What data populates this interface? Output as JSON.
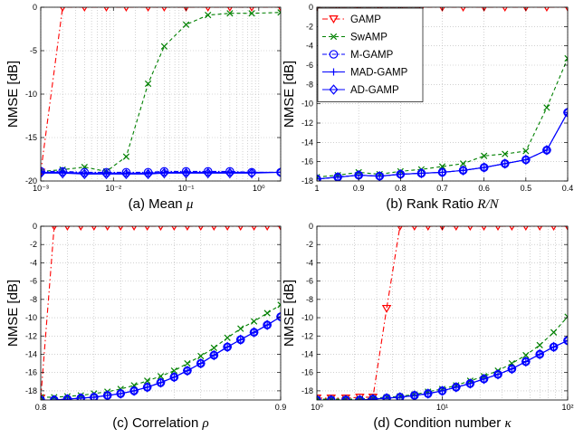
{
  "series_styles": [
    {
      "name": "GAMP",
      "color": "#ff0000",
      "dash": "6,3,1.5,3",
      "marker": "triangle-down"
    },
    {
      "name": "SwAMP",
      "color": "#008000",
      "dash": "4,3",
      "marker": "x"
    },
    {
      "name": "M-GAMP",
      "color": "#0000ff",
      "dash": "5,2,1.5,2",
      "marker": "circle"
    },
    {
      "name": "MAD-GAMP",
      "color": "#0000ff",
      "dash": "",
      "marker": "plus"
    },
    {
      "name": "AD-GAMP",
      "color": "#0000ff",
      "dash": "",
      "marker": "diamond"
    }
  ],
  "chart_data": [
    {
      "type": "line",
      "caption": "(a) Mean",
      "caption_symbol": "μ",
      "ylabel": "NMSE [dB]",
      "xscale": "log",
      "xlim": [
        0.001,
        2
      ],
      "ylim": [
        -20,
        0
      ],
      "xticks": [
        0.001,
        0.01,
        0.1,
        1
      ],
      "xtick_labels": [
        "10⁻³",
        "10⁻²",
        "10⁻¹",
        "10⁰"
      ],
      "yticks": [
        -20,
        -15,
        -10,
        -5,
        0
      ],
      "ytick_labels": [
        "-20",
        "-15",
        "-10",
        "-5",
        "0"
      ],
      "grid": true,
      "x": [
        0.001,
        0.002,
        0.004,
        0.008,
        0.015,
        0.03,
        0.05,
        0.1,
        0.2,
        0.4,
        0.8,
        2
      ],
      "series": [
        {
          "name": "GAMP",
          "values": [
            -19,
            0,
            0,
            0,
            0,
            0,
            0,
            0,
            0,
            0,
            0,
            0
          ]
        },
        {
          "name": "SwAMP",
          "values": [
            -18.9,
            -18.7,
            -18.4,
            -18.9,
            -17.2,
            -8.8,
            -4.5,
            -2.0,
            -0.9,
            -0.7,
            -0.7,
            -0.6
          ]
        },
        {
          "name": "M-GAMP",
          "values": [
            -18.9,
            -18.9,
            -19.0,
            -19.0,
            -19.0,
            -19.0,
            -18.9,
            -18.9,
            -18.9,
            -18.9,
            -19.0,
            -19.0
          ]
        },
        {
          "name": "MAD-GAMP",
          "values": [
            -19.0,
            -19.0,
            -19.1,
            -19.1,
            -19.1,
            -19.1,
            -19.0,
            -19.0,
            -19.0,
            -19.0,
            -19.0,
            -19.0
          ]
        },
        {
          "name": "AD-GAMP",
          "values": [
            -19.1,
            -19.1,
            -19.2,
            -19.2,
            -19.2,
            -19.2,
            -19.1,
            -19.1,
            -19.1,
            -19.1,
            -19.1,
            -19.0
          ]
        }
      ]
    },
    {
      "type": "line",
      "caption": "(b) Rank Ratio",
      "caption_symbol": "R/N",
      "ylabel": "NMSE [dB]",
      "xscale": "linear",
      "xreversed": true,
      "xlim": [
        1,
        0.4
      ],
      "ylim": [
        -18,
        0
      ],
      "xticks": [
        1,
        0.9,
        0.8,
        0.7,
        0.6,
        0.5,
        0.4
      ],
      "xtick_labels": [
        "1",
        "0.9",
        "0.8",
        "0.7",
        "0.6",
        "0.5",
        "0.4"
      ],
      "yticks": [
        -18,
        -16,
        -14,
        -12,
        -10,
        -8,
        -6,
        -4,
        -2,
        0
      ],
      "ytick_labels": [
        "-18",
        "-16",
        "-14",
        "-12",
        "-10",
        "-8",
        "-6",
        "-4",
        "-2",
        "0"
      ],
      "grid": true,
      "legend": "top-left",
      "x": [
        1,
        0.95,
        0.9,
        0.85,
        0.8,
        0.75,
        0.7,
        0.65,
        0.6,
        0.55,
        0.5,
        0.45,
        0.4
      ],
      "series": [
        {
          "name": "GAMP",
          "values": [
            0,
            0,
            0,
            0,
            0,
            0,
            0,
            0,
            0,
            0,
            0,
            0,
            0
          ]
        },
        {
          "name": "SwAMP",
          "values": [
            -17.6,
            -17.4,
            -17.1,
            -17.3,
            -17.0,
            -16.8,
            -16.5,
            -16.2,
            -15.4,
            -15.2,
            -14.9,
            -10.4,
            -5.3
          ]
        },
        {
          "name": "M-GAMP",
          "values": [
            -17.8,
            -17.6,
            -17.4,
            -17.5,
            -17.3,
            -17.2,
            -17.1,
            -16.9,
            -16.6,
            -16.2,
            -15.8,
            -14.8,
            -10.9
          ]
        },
        {
          "name": "MAD-GAMP",
          "values": [
            -17.8,
            -17.6,
            -17.4,
            -17.5,
            -17.3,
            -17.2,
            -17.1,
            -16.9,
            -16.6,
            -16.2,
            -15.8,
            -14.8,
            -10.9
          ]
        },
        {
          "name": "AD-GAMP",
          "values": [
            -17.8,
            -17.6,
            -17.4,
            -17.5,
            -17.3,
            -17.2,
            -17.1,
            -16.9,
            -16.6,
            -16.2,
            -15.8,
            -14.8,
            -10.9
          ]
        }
      ]
    },
    {
      "type": "line",
      "caption": "(c) Correlation",
      "caption_symbol": "ρ",
      "ylabel": "NMSE [dB]",
      "xscale": "linear",
      "xlim": [
        0.8,
        0.9
      ],
      "ylim": [
        -19,
        0
      ],
      "xticks": [
        0.8,
        0.9
      ],
      "xtick_labels": [
        "0.8",
        "0.9"
      ],
      "xgrid": [
        0.8,
        0.8111,
        0.8222,
        0.8333,
        0.8444,
        0.8556,
        0.8667,
        0.8778,
        0.8889,
        0.9
      ],
      "yticks": [
        -18,
        -16,
        -14,
        -12,
        -10,
        -8,
        -6,
        -4,
        -2,
        0
      ],
      "ytick_labels": [
        "-18",
        "-16",
        "-14",
        "-12",
        "-10",
        "-8",
        "-6",
        "-4",
        "-2",
        "0"
      ],
      "grid": true,
      "x": [
        0.8,
        0.8056,
        0.8111,
        0.8167,
        0.8222,
        0.8278,
        0.8333,
        0.8389,
        0.8444,
        0.85,
        0.8556,
        0.8611,
        0.8667,
        0.8722,
        0.8778,
        0.8833,
        0.8889,
        0.8944,
        0.9
      ],
      "series": [
        {
          "name": "GAMP",
          "values": [
            -18.8,
            0,
            0,
            0,
            0,
            0,
            0,
            0,
            0,
            0,
            0,
            0,
            0,
            0,
            0,
            0,
            0,
            0,
            0
          ]
        },
        {
          "name": "SwAMP",
          "values": [
            -18.7,
            -18.7,
            -18.6,
            -18.5,
            -18.3,
            -18.1,
            -17.8,
            -17.4,
            -16.9,
            -16.4,
            -15.8,
            -15.0,
            -14.2,
            -13.3,
            -12.2,
            -11.2,
            -10.4,
            -9.5,
            -8.6
          ]
        },
        {
          "name": "M-GAMP",
          "values": [
            -19.0,
            -19.0,
            -18.9,
            -18.8,
            -18.7,
            -18.5,
            -18.3,
            -18.0,
            -17.6,
            -17.1,
            -16.5,
            -15.8,
            -15.0,
            -14.1,
            -13.2,
            -12.4,
            -11.6,
            -10.8,
            -9.9
          ]
        },
        {
          "name": "MAD-GAMP",
          "values": [
            -19.0,
            -19.0,
            -18.9,
            -18.8,
            -18.7,
            -18.5,
            -18.3,
            -18.0,
            -17.6,
            -17.1,
            -16.5,
            -15.8,
            -15.0,
            -14.1,
            -13.2,
            -12.4,
            -11.6,
            -10.8,
            -9.9
          ]
        },
        {
          "name": "AD-GAMP",
          "values": [
            -19.0,
            -19.0,
            -18.9,
            -18.8,
            -18.7,
            -18.5,
            -18.3,
            -18.0,
            -17.6,
            -17.1,
            -16.5,
            -15.8,
            -15.0,
            -14.1,
            -13.2,
            -12.4,
            -11.6,
            -10.8,
            -9.9
          ]
        }
      ]
    },
    {
      "type": "line",
      "caption": "(d) Condition number",
      "caption_symbol": "κ",
      "ylabel": "NMSE [dB]",
      "xscale": "log",
      "xlim": [
        1,
        100
      ],
      "ylim": [
        -19,
        0
      ],
      "xticks": [
        1,
        10,
        100
      ],
      "xtick_labels": [
        "10⁰",
        "10¹",
        "10²"
      ],
      "yticks": [
        -18,
        -16,
        -14,
        -12,
        -10,
        -8,
        -6,
        -4,
        -2,
        0
      ],
      "ytick_labels": [
        "-18",
        "-16",
        "-14",
        "-12",
        "-10",
        "-8",
        "-6",
        "-4",
        "-2",
        "0"
      ],
      "grid": true,
      "x": [
        1,
        1.3,
        1.7,
        2.2,
        2.8,
        3.6,
        4.6,
        6,
        7.7,
        10,
        12.9,
        16.7,
        21.5,
        27.8,
        35.9,
        46.4,
        59.9,
        77.4,
        100
      ],
      "series": [
        {
          "name": "GAMP",
          "values": [
            -18.8,
            -18.8,
            -18.8,
            -18.7,
            -18.7,
            -9,
            0,
            0,
            0,
            0,
            0,
            0,
            0,
            0,
            0,
            0,
            0,
            0,
            0
          ]
        },
        {
          "name": "SwAMP",
          "values": [
            -18.9,
            -18.9,
            -18.9,
            -18.9,
            -18.8,
            -18.7,
            -18.6,
            -18.4,
            -18.1,
            -17.8,
            -17.4,
            -16.9,
            -16.4,
            -15.8,
            -15.0,
            -14.1,
            -13.0,
            -11.6,
            -9.9
          ]
        },
        {
          "name": "M-GAMP",
          "values": [
            -19.0,
            -19.0,
            -19.0,
            -19.0,
            -18.9,
            -18.8,
            -18.7,
            -18.5,
            -18.3,
            -18.0,
            -17.6,
            -17.2,
            -16.7,
            -16.2,
            -15.6,
            -14.8,
            -14.0,
            -13.2,
            -12.5
          ]
        },
        {
          "name": "MAD-GAMP",
          "values": [
            -19.0,
            -19.0,
            -19.0,
            -19.0,
            -18.9,
            -18.8,
            -18.7,
            -18.5,
            -18.3,
            -18.0,
            -17.6,
            -17.2,
            -16.7,
            -16.2,
            -15.6,
            -14.8,
            -14.0,
            -13.2,
            -12.5
          ]
        },
        {
          "name": "AD-GAMP",
          "values": [
            -19.0,
            -19.0,
            -19.0,
            -19.0,
            -18.9,
            -18.8,
            -18.7,
            -18.5,
            -18.3,
            -18.0,
            -17.6,
            -17.2,
            -16.7,
            -16.2,
            -15.6,
            -14.8,
            -14.0,
            -13.2,
            -12.5
          ]
        }
      ]
    }
  ]
}
